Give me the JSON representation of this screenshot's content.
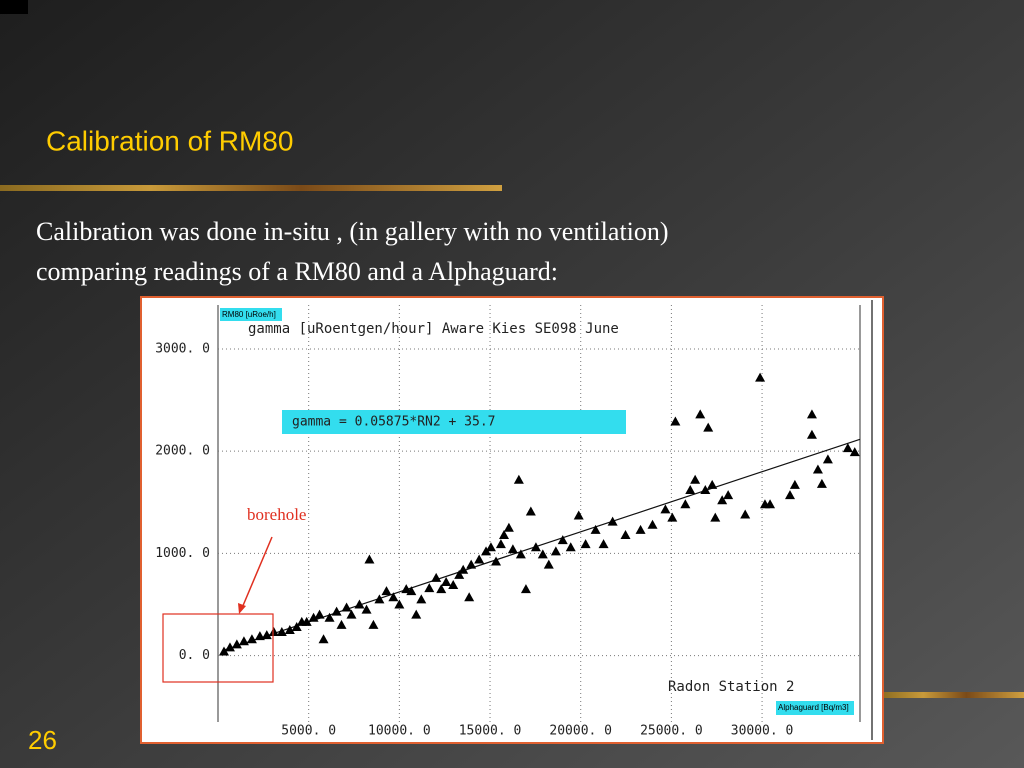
{
  "slide": {
    "title": "Calibration of RM80",
    "body": [
      "Calibration was done in-situ , (in gallery with no ventilation)",
      "comparing readings of a RM80 and a Alphaguard:"
    ],
    "page_number": "26"
  },
  "chart_data": {
    "type": "scatter",
    "title": "gamma [uRoentgen/hour] Aware Kies SE098 June",
    "y_label": "RM80 [uRoe/h]",
    "x_label": "Alphaguard [Bq/m3]",
    "annotations": {
      "equation": "gamma = 0.05875*RN2 + 35.7",
      "station": "Radon Station 2",
      "borehole": "borehole"
    },
    "color": "#000000",
    "grid": true,
    "xlim": [
      0,
      35400
    ],
    "ylim": [
      -650,
      3430
    ],
    "xticks": [
      {
        "value": 5000,
        "label": "5000. 0"
      },
      {
        "value": 10000,
        "label": "10000. 0"
      },
      {
        "value": 15000,
        "label": "15000. 0"
      },
      {
        "value": 20000,
        "label": "20000. 0"
      },
      {
        "value": 25000,
        "label": "25000. 0"
      },
      {
        "value": 30000,
        "label": "30000. 0"
      }
    ],
    "yticks": [
      {
        "value": 0,
        "label": "0. 0"
      },
      {
        "value": 1000,
        "label": "1000. 0"
      },
      {
        "value": 2000,
        "label": "2000. 0"
      },
      {
        "value": 3000,
        "label": "3000. 0"
      }
    ],
    "x": [
      330,
      660,
      1040,
      1430,
      1870,
      2310,
      2690,
      3080,
      3520,
      3960,
      4340,
      4620,
      4890,
      5270,
      5600,
      5820,
      6150,
      6540,
      6810,
      7090,
      7360,
      7800,
      8190,
      8350,
      8570,
      8900,
      9290,
      9670,
      10000,
      10380,
      10660,
      10930,
      11210,
      11650,
      12030,
      12310,
      12580,
      12970,
      13300,
      13520,
      13850,
      13960,
      14400,
      14780,
      15050,
      15330,
      15600,
      15770,
      16040,
      16260,
      16590,
      16700,
      16980,
      17250,
      17530,
      17910,
      18240,
      18630,
      19010,
      19450,
      19890,
      20270,
      20820,
      21260,
      21760,
      22470,
      23300,
      23960,
      24670,
      25050,
      25220,
      25770,
      26040,
      26310,
      26590,
      26870,
      27030,
      27250,
      27420,
      27800,
      28130,
      29070,
      29890,
      30160,
      30440,
      31540,
      31810,
      32750,
      32750,
      33080,
      33300,
      33630,
      34730,
      35110
    ],
    "values": [
      40,
      80,
      110,
      140,
      160,
      190,
      200,
      230,
      230,
      250,
      280,
      330,
      330,
      370,
      400,
      160,
      370,
      430,
      300,
      470,
      400,
      500,
      450,
      940,
      300,
      550,
      630,
      570,
      500,
      650,
      630,
      400,
      550,
      660,
      760,
      650,
      720,
      690,
      790,
      840,
      570,
      890,
      940,
      1020,
      1060,
      920,
      1090,
      1180,
      1250,
      1040,
      1720,
      990,
      650,
      1410,
      1060,
      990,
      890,
      1020,
      1130,
      1060,
      1370,
      1090,
      1230,
      1090,
      1310,
      1180,
      1230,
      1280,
      1430,
      1350,
      2290,
      1480,
      1620,
      1720,
      2360,
      1620,
      2230,
      1670,
      1350,
      1520,
      1570,
      1380,
      2720,
      1480,
      1480,
      1570,
      1670,
      2360,
      2160,
      1820,
      1680,
      1920,
      2030,
      1990
    ],
    "fit_line": {
      "x": [
        300,
        35400
      ],
      "values": [
        53,
        2116
      ]
    }
  }
}
